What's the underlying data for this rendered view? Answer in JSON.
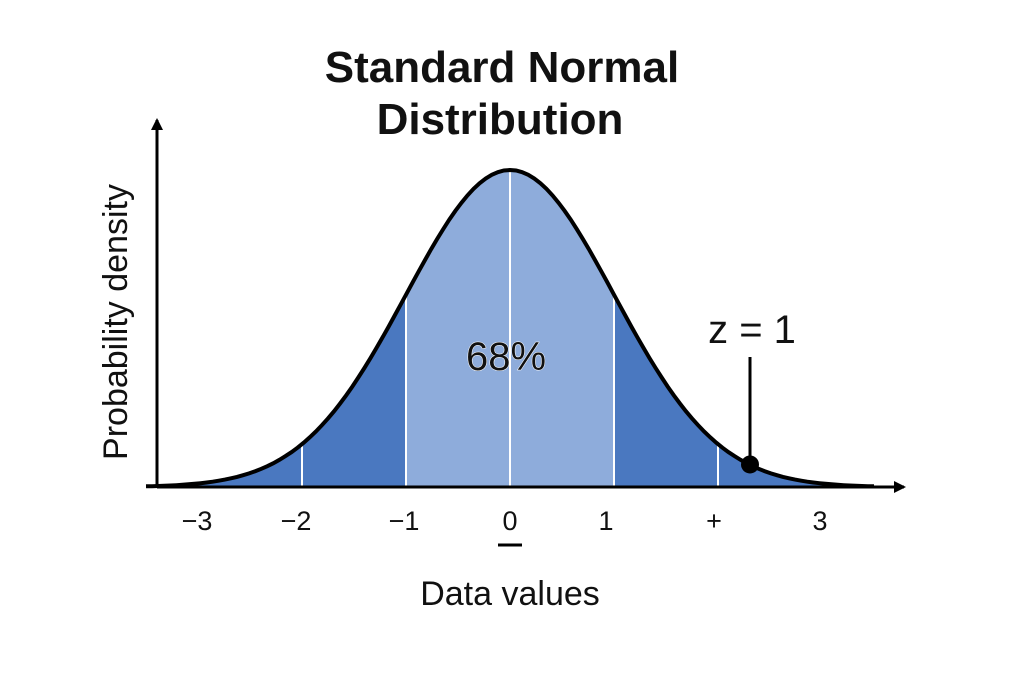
{
  "chart_data": {
    "type": "area",
    "title": [
      "Standard Normal",
      "Distribution"
    ],
    "xlabel": "Data values",
    "ylabel": "Probability density",
    "xlim": [
      -3.5,
      3.5
    ],
    "ylim": [
      0,
      0.42
    ],
    "grid": false,
    "curve": {
      "distribution": "normal",
      "mean": 0,
      "sd": 1
    },
    "x_tick_values": [
      -3,
      -2,
      -1,
      0,
      1,
      2,
      3
    ],
    "x_tick_labels": [
      "−3",
      "−2",
      "−1",
      "0",
      "1",
      "+",
      "3"
    ],
    "underlined_tick": "0",
    "bands": [
      {
        "from": -3.5,
        "to": -1,
        "color": "#4a78c0"
      },
      {
        "from": -1,
        "to": 1,
        "color": "#8eacdb"
      },
      {
        "from": 1,
        "to": 3.5,
        "color": "#4a78c0"
      }
    ],
    "dividers": [
      -2,
      -1,
      0,
      1,
      2
    ],
    "center_label": "68%",
    "annotation": {
      "label": "z = 1",
      "x": 2.3
    },
    "colors": {
      "curve": "#000000",
      "axis": "#000000",
      "divider": "#ffffff"
    }
  }
}
